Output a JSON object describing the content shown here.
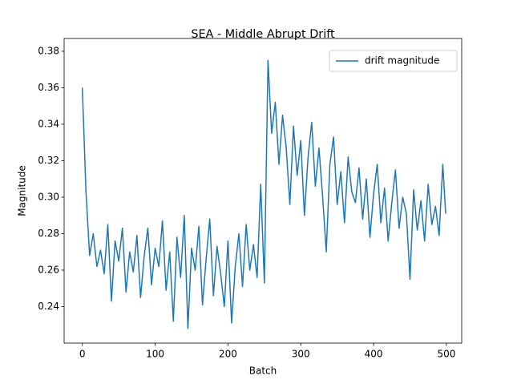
{
  "chart_data": {
    "type": "line",
    "title": "SEA - Middle Abrupt Drift",
    "x_label": "Batch",
    "y_label": "Magnitude",
    "x": [
      0,
      5,
      10,
      15,
      20,
      25,
      30,
      35,
      40,
      45,
      50,
      55,
      60,
      65,
      70,
      75,
      80,
      85,
      90,
      95,
      100,
      105,
      110,
      115,
      120,
      125,
      130,
      135,
      140,
      145,
      150,
      155,
      160,
      165,
      170,
      175,
      180,
      185,
      190,
      195,
      200,
      205,
      210,
      215,
      220,
      225,
      230,
      235,
      240,
      245,
      250,
      255,
      260,
      265,
      270,
      275,
      280,
      285,
      290,
      295,
      300,
      305,
      310,
      315,
      320,
      325,
      330,
      335,
      340,
      345,
      350,
      355,
      360,
      365,
      370,
      375,
      380,
      385,
      390,
      395,
      400,
      405,
      410,
      415,
      420,
      425,
      430,
      435,
      440,
      445,
      450,
      455,
      460,
      465,
      470,
      475,
      480,
      485,
      490,
      495,
      499
    ],
    "series": [
      {
        "name": "drift magnitude",
        "color": "#1f77b4",
        "values": [
          0.36,
          0.303,
          0.268,
          0.28,
          0.262,
          0.271,
          0.258,
          0.285,
          0.243,
          0.276,
          0.265,
          0.283,
          0.248,
          0.27,
          0.259,
          0.279,
          0.245,
          0.268,
          0.283,
          0.252,
          0.272,
          0.262,
          0.287,
          0.249,
          0.27,
          0.232,
          0.278,
          0.256,
          0.29,
          0.228,
          0.272,
          0.26,
          0.284,
          0.241,
          0.266,
          0.288,
          0.246,
          0.273,
          0.258,
          0.24,
          0.276,
          0.231,
          0.262,
          0.28,
          0.251,
          0.285,
          0.26,
          0.274,
          0.256,
          0.307,
          0.253,
          0.375,
          0.335,
          0.352,
          0.318,
          0.345,
          0.327,
          0.296,
          0.339,
          0.312,
          0.331,
          0.29,
          0.322,
          0.341,
          0.306,
          0.327,
          0.3,
          0.27,
          0.318,
          0.333,
          0.296,
          0.314,
          0.286,
          0.322,
          0.303,
          0.297,
          0.316,
          0.288,
          0.31,
          0.278,
          0.302,
          0.318,
          0.286,
          0.305,
          0.276,
          0.297,
          0.315,
          0.283,
          0.3,
          0.291,
          0.255,
          0.304,
          0.282,
          0.298,
          0.276,
          0.307,
          0.285,
          0.295,
          0.279,
          0.318,
          0.291
        ]
      }
    ],
    "xlim": [
      -25,
      521
    ],
    "xticks": [
      0,
      100,
      200,
      300,
      400,
      500
    ],
    "ylim": [
      0.22,
      0.387
    ],
    "yticks": [
      0.24,
      0.26,
      0.28,
      {
        "value": 0.3,
        "label": "0.30"
      },
      0.32,
      0.34,
      0.36,
      0.38
    ],
    "legend": "upper right"
  }
}
